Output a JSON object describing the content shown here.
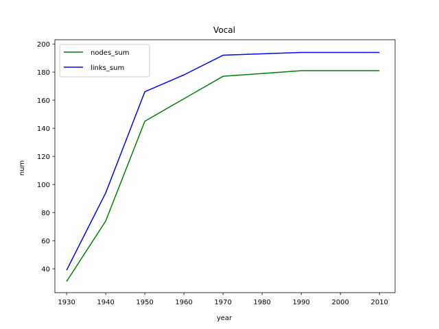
{
  "chart_data": {
    "type": "line",
    "title": "Vocal",
    "xlabel": "year",
    "ylabel": "num",
    "x": [
      1930,
      1940,
      1950,
      1960,
      1970,
      1980,
      1990,
      2000,
      2010
    ],
    "xlim": [
      1927,
      2014
    ],
    "ylim": [
      23,
      203
    ],
    "xticks": [
      1930,
      1940,
      1950,
      1960,
      1970,
      1980,
      1990,
      2000,
      2010
    ],
    "yticks": [
      40,
      60,
      80,
      100,
      120,
      140,
      160,
      180,
      200
    ],
    "grid": false,
    "legend_position": "upper-left",
    "series": [
      {
        "name": "nodes_sum",
        "color": "#008000",
        "values": [
          31,
          74,
          145,
          161,
          177,
          179,
          181,
          181,
          181
        ]
      },
      {
        "name": "links_sum",
        "color": "#0000ff",
        "values": [
          39,
          94,
          166,
          178,
          192,
          193,
          194,
          194,
          194
        ]
      }
    ]
  }
}
